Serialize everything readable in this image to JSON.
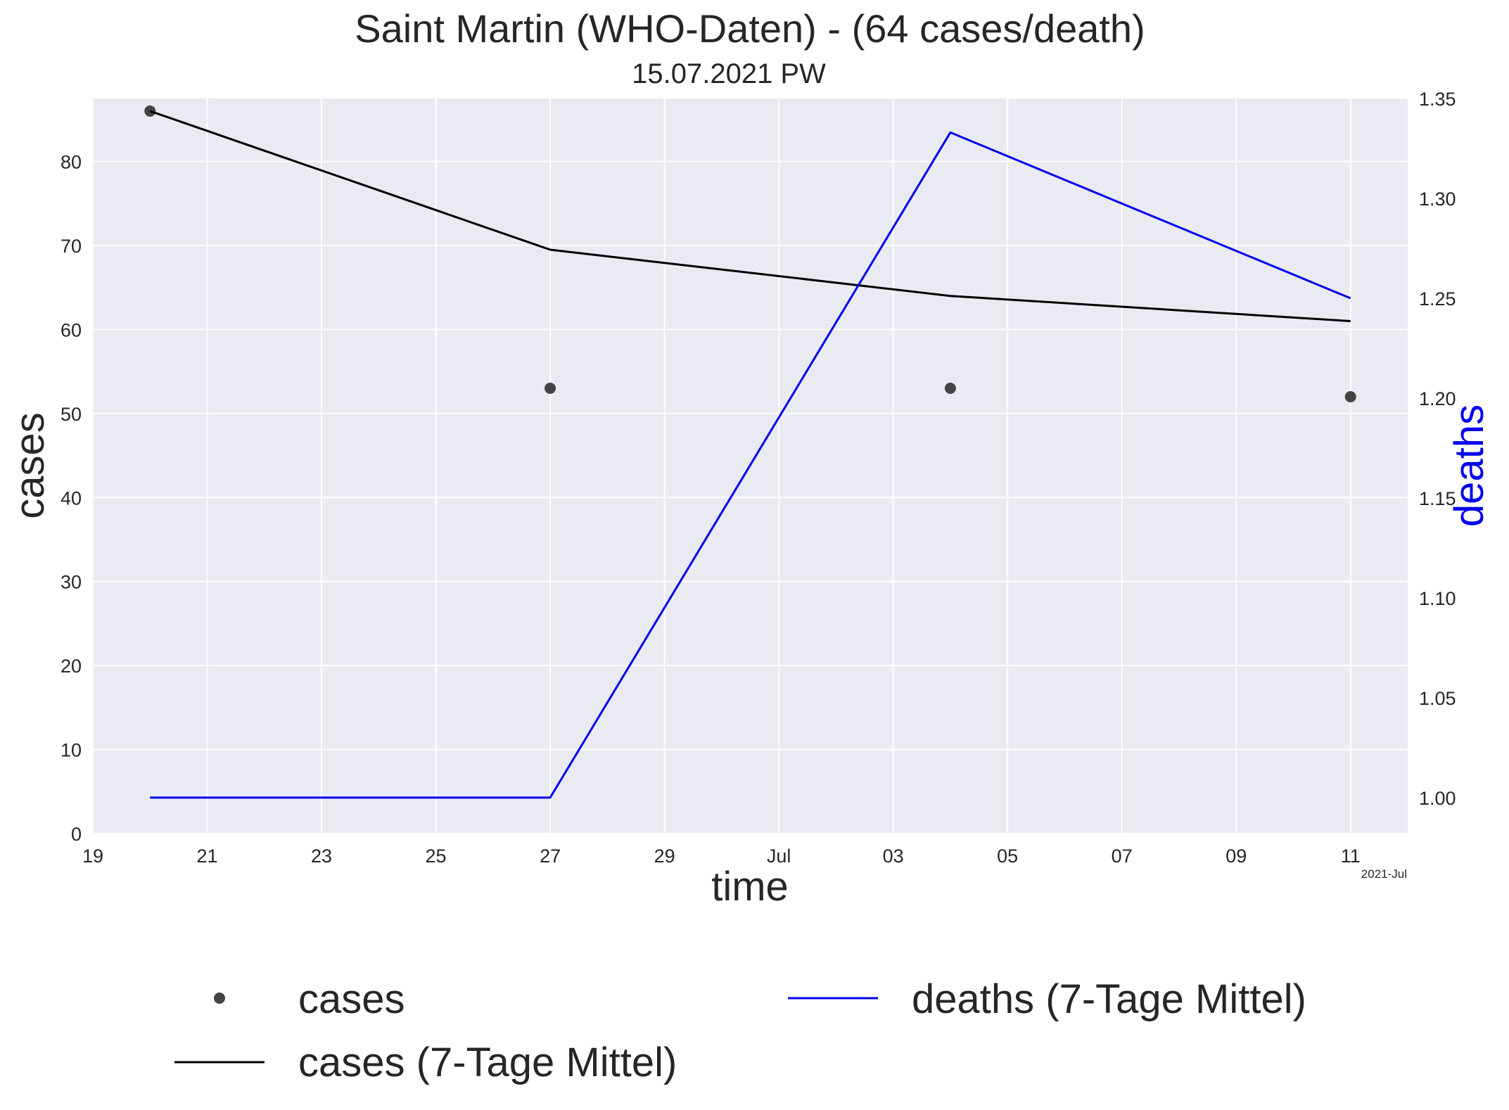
{
  "chart_data": {
    "type": "line",
    "title": "Saint Martin (WHO-Daten) - (64 cases/death)",
    "subtitle": "15.07.2021 PW",
    "xlabel": "time",
    "ylabel_left": "cases",
    "ylabel_right": "deaths",
    "x_offset_label": "2021-Jul",
    "xlim": [
      "2021-06-19",
      "2021-07-12"
    ],
    "ylim_left": [
      0,
      87.5
    ],
    "ylim_right": [
      0.982,
      1.35
    ],
    "grid": true,
    "x_ticks": [
      {
        "date": "2021-06-19",
        "label": "19"
      },
      {
        "date": "2021-06-21",
        "label": "21"
      },
      {
        "date": "2021-06-23",
        "label": "23"
      },
      {
        "date": "2021-06-25",
        "label": "25"
      },
      {
        "date": "2021-06-27",
        "label": "27"
      },
      {
        "date": "2021-06-29",
        "label": "29"
      },
      {
        "date": "2021-07-01",
        "label": "Jul"
      },
      {
        "date": "2021-07-03",
        "label": "03"
      },
      {
        "date": "2021-07-05",
        "label": "05"
      },
      {
        "date": "2021-07-07",
        "label": "07"
      },
      {
        "date": "2021-07-09",
        "label": "09"
      },
      {
        "date": "2021-07-11",
        "label": "11"
      }
    ],
    "y_ticks_left": [
      {
        "value": 0,
        "label": "0"
      },
      {
        "value": 10,
        "label": "10"
      },
      {
        "value": 20,
        "label": "20"
      },
      {
        "value": 30,
        "label": "30"
      },
      {
        "value": 40,
        "label": "40"
      },
      {
        "value": 50,
        "label": "50"
      },
      {
        "value": 60,
        "label": "60"
      },
      {
        "value": 70,
        "label": "70"
      },
      {
        "value": 80,
        "label": "80"
      }
    ],
    "y_ticks_right": [
      {
        "value": 1.0,
        "label": "1.00"
      },
      {
        "value": 1.05,
        "label": "1.05"
      },
      {
        "value": 1.1,
        "label": "1.10"
      },
      {
        "value": 1.15,
        "label": "1.15"
      },
      {
        "value": 1.2,
        "label": "1.20"
      },
      {
        "value": 1.25,
        "label": "1.25"
      },
      {
        "value": 1.3,
        "label": "1.30"
      },
      {
        "value": 1.35,
        "label": "1.35"
      }
    ],
    "series": [
      {
        "name": "cases",
        "kind": "scatter",
        "axis": "left",
        "color": "#444444",
        "x": [
          "2021-06-20",
          "2021-06-27",
          "2021-07-04",
          "2021-07-11"
        ],
        "y": [
          86,
          53,
          53,
          52
        ]
      },
      {
        "name": "cases (7-Tage Mittel)",
        "kind": "line",
        "axis": "left",
        "color": "#000000",
        "x": [
          "2021-06-20",
          "2021-06-27",
          "2021-07-04",
          "2021-07-11"
        ],
        "y": [
          86,
          69.5,
          64,
          61
        ]
      },
      {
        "name": "deaths (7-Tage Mittel)",
        "kind": "line",
        "axis": "right",
        "color": "#0000ee",
        "x": [
          "2021-06-20",
          "2021-06-27",
          "2021-07-04",
          "2021-07-11"
        ],
        "y": [
          1.0,
          1.0,
          1.333,
          1.25
        ]
      }
    ],
    "legend": {
      "placement": "below"
    }
  },
  "colors": {
    "plot_background": "#eaeaf2",
    "grid": "#ffffff",
    "text": "#262626",
    "deaths_label": "#0000ee"
  }
}
